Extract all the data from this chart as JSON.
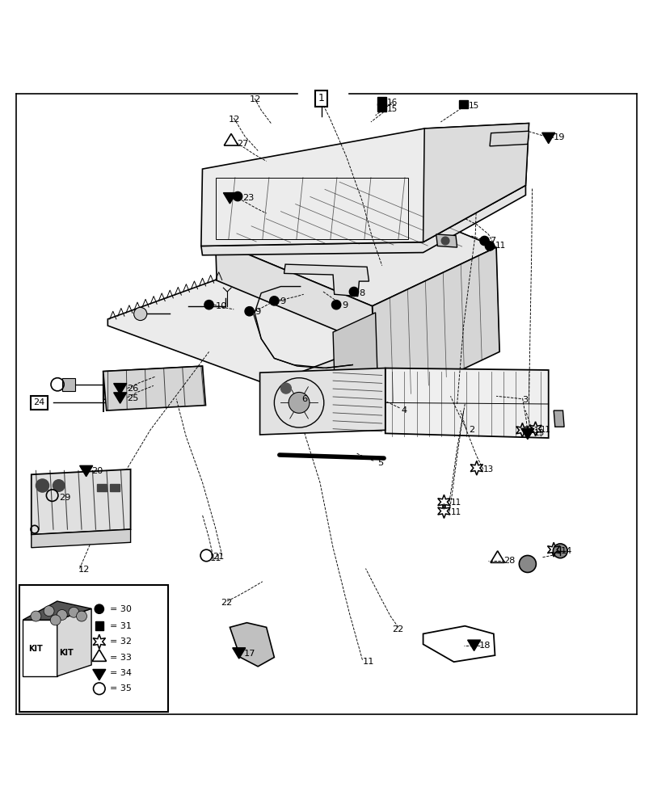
{
  "bg_color": "#ffffff",
  "border_color": "#000000",
  "legend_items": [
    {
      "symbol": "circle_filled",
      "value": "30"
    },
    {
      "symbol": "square_filled",
      "value": "31"
    },
    {
      "symbol": "star_open",
      "value": "32"
    },
    {
      "symbol": "triangle_open",
      "value": "33"
    },
    {
      "symbol": "triangle_filled_down",
      "value": "34"
    },
    {
      "symbol": "circle_open",
      "value": "35"
    }
  ]
}
